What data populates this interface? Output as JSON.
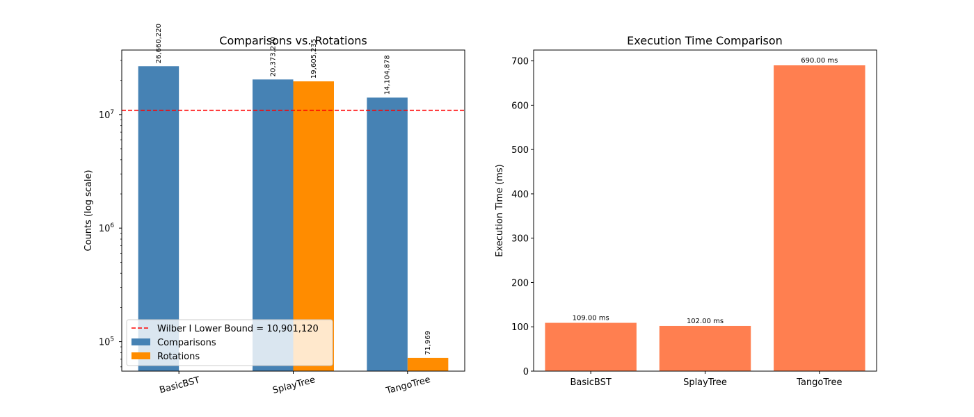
{
  "chart_data": [
    {
      "type": "bar",
      "title": "Comparisons vs. Rotations",
      "ylabel": "Counts (log scale)",
      "yscale": "log",
      "ylim": [
        55000,
        37000000
      ],
      "categories": [
        "BasicBST",
        "SplayTree",
        "TangoTree"
      ],
      "series": [
        {
          "name": "Comparisons",
          "color": "#4682b4",
          "values": [
            26660220,
            20373220,
            14104878
          ],
          "labels": [
            "26,660,220",
            "20,373,220",
            "14,104,878"
          ]
        },
        {
          "name": "Rotations",
          "color": "#ff8c00",
          "values": [
            0,
            19605235,
            71969
          ],
          "labels": [
            "",
            "19,605,235",
            "71,969"
          ]
        }
      ],
      "reference_line": {
        "label": "Wilber I Lower Bound = 10,901,120",
        "value": 10901120,
        "color": "#ff0000"
      },
      "yticks": [
        {
          "value": 100000,
          "base": "10",
          "exp": "5"
        },
        {
          "value": 1000000,
          "base": "10",
          "exp": "6"
        },
        {
          "value": 10000000,
          "base": "10",
          "exp": "7"
        }
      ],
      "legend_position": "lower-left",
      "grid": false
    },
    {
      "type": "bar",
      "title": "Execution Time Comparison",
      "ylabel": "Execution Time (ms)",
      "ylim": [
        0,
        724.5
      ],
      "categories": [
        "BasicBST",
        "SplayTree",
        "TangoTree"
      ],
      "series": [
        {
          "color": "#ff7f50",
          "values": [
            109,
            102,
            690
          ],
          "labels": [
            "109.00 ms",
            "102.00 ms",
            "690.00 ms"
          ]
        }
      ],
      "yticks": [
        "0",
        "100",
        "200",
        "300",
        "400",
        "500",
        "600",
        "700"
      ],
      "grid": false
    }
  ]
}
